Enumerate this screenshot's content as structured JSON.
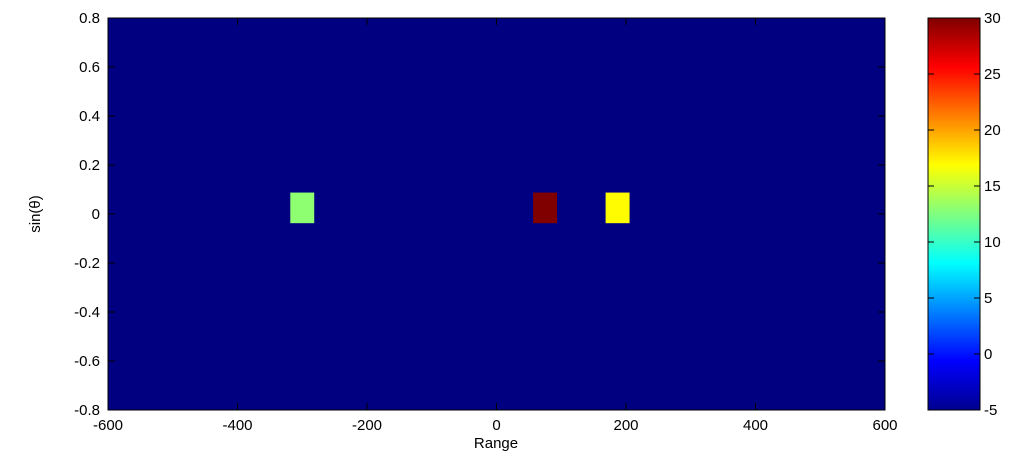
{
  "chart_data": {
    "type": "heatmap",
    "title": "",
    "xlabel": "Range",
    "ylabel": "sin(θ)",
    "xlim": [
      -600,
      600
    ],
    "ylim": [
      -0.8,
      0.8
    ],
    "xticks": [
      -600,
      -400,
      -200,
      0,
      200,
      400,
      600
    ],
    "yticks": [
      0.8,
      0.6,
      0.4,
      0.2,
      0,
      -0.2,
      -0.4,
      -0.6,
      -0.8
    ],
    "background_value": -5,
    "targets": [
      {
        "range": -300,
        "sin_theta": 0.025,
        "value": 13
      },
      {
        "range": 75,
        "sin_theta": 0.025,
        "value": 30
      },
      {
        "range": 187,
        "sin_theta": 0.025,
        "value": 17
      }
    ],
    "cell_width": 37,
    "cell_height": 0.125,
    "colorbar": {
      "colormap": "jet",
      "range": [
        -5,
        30
      ],
      "ticks": [
        30,
        25,
        20,
        15,
        10,
        5,
        0,
        -5
      ]
    },
    "grid": false
  }
}
